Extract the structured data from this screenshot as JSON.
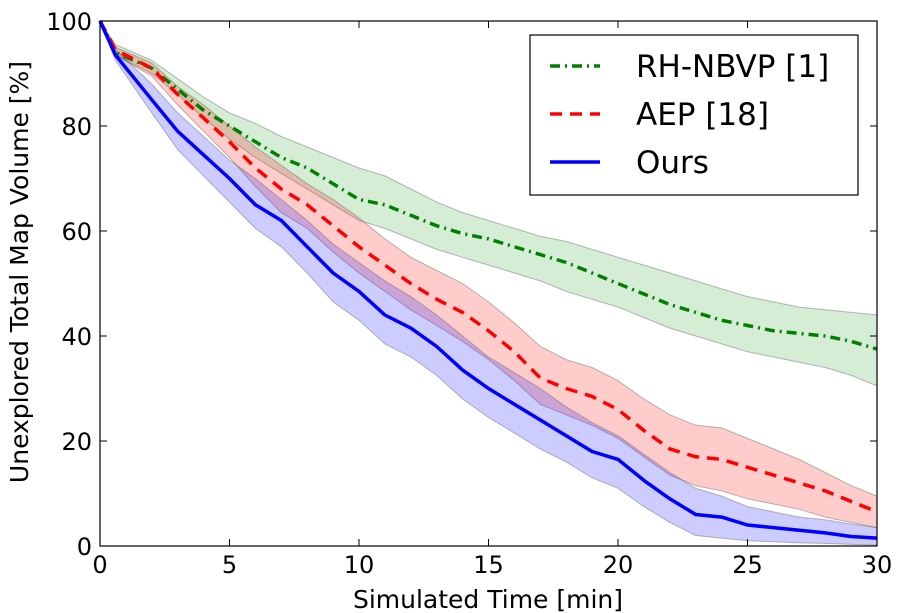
{
  "chart_data": {
    "type": "line",
    "title": "",
    "xlabel": "Simulated Time [min]",
    "ylabel": "Unexplored Total Map Volume [%]",
    "xlim": [
      0,
      30
    ],
    "ylim": [
      0,
      100
    ],
    "xticks": [
      0,
      5,
      10,
      15,
      20,
      25,
      30
    ],
    "yticks": [
      0,
      20,
      40,
      60,
      80,
      100
    ],
    "grid": false,
    "legend_position": "top-right",
    "series": [
      {
        "name": "RH-NBVP [1]",
        "color": "#008000",
        "fill_color": "#2ca02c",
        "line_style": "dash-dot",
        "x": [
          0,
          0.6,
          2,
          3,
          4,
          5,
          6,
          7,
          8,
          9,
          10,
          11,
          12,
          13,
          14,
          15,
          16,
          17,
          18,
          19,
          20,
          21,
          22,
          23,
          24,
          25,
          26,
          27,
          28,
          29,
          30
        ],
        "y": [
          100,
          94,
          91,
          87,
          83,
          80,
          77,
          74,
          72,
          69,
          66,
          65,
          63,
          61,
          59.5,
          58.5,
          57,
          55.5,
          54,
          52,
          50,
          48,
          46,
          44.5,
          43,
          42,
          41,
          40.5,
          40,
          39,
          37.5
        ],
        "upper": [
          100,
          95.5,
          92.5,
          89,
          85.5,
          82.5,
          80.5,
          78,
          76,
          74,
          72,
          70.5,
          68,
          65.5,
          63.5,
          62,
          60.5,
          59,
          58,
          56.5,
          55,
          53.5,
          52,
          50.5,
          49,
          47.5,
          46.5,
          45.5,
          45,
          44.5,
          44
        ],
        "lower": [
          100,
          93.5,
          90,
          86,
          81.5,
          77.5,
          74,
          71,
          68,
          65,
          62,
          60.5,
          58.5,
          56.5,
          55,
          53.5,
          52,
          50.5,
          48.5,
          47,
          45.5,
          43.5,
          41.5,
          40,
          38.5,
          37,
          36,
          35,
          34,
          32.5,
          30.5
        ]
      },
      {
        "name": "AEP [18]",
        "color": "#ff0000",
        "fill_color": "#ff0000",
        "line_style": "dashed",
        "x": [
          0,
          0.6,
          2,
          3,
          4,
          5,
          6,
          7,
          8,
          9,
          10,
          11,
          12,
          13,
          14,
          15,
          16,
          17,
          18,
          19,
          20,
          21,
          22,
          23,
          24,
          25,
          26,
          27,
          28,
          29,
          30
        ],
        "y": [
          100,
          94.5,
          91,
          86,
          81.5,
          77,
          72,
          68,
          65,
          61,
          57,
          53.5,
          50,
          47,
          44.5,
          41,
          37,
          32,
          30,
          28.5,
          26,
          22,
          18.5,
          17,
          16.5,
          15,
          13.5,
          12,
          10.5,
          8.5,
          6.5
        ],
        "upper": [
          100,
          95,
          92,
          87.5,
          84,
          80,
          76,
          72.5,
          69,
          66,
          62.5,
          58.5,
          55,
          52.5,
          50,
          46.5,
          42.5,
          38,
          35.5,
          34,
          31.5,
          28,
          25,
          23,
          22.5,
          20.5,
          18.5,
          16.5,
          14,
          11.5,
          9.5
        ],
        "lower": [
          100,
          93.5,
          89.5,
          84,
          79,
          74,
          68.5,
          63.5,
          60.5,
          56,
          52,
          48.5,
          45,
          42,
          39,
          35.5,
          31.5,
          27,
          25,
          23,
          20.5,
          17,
          13.5,
          11.5,
          10.5,
          9,
          8,
          7,
          5.5,
          4.5,
          3.5
        ]
      },
      {
        "name": "Ours",
        "color": "#0000ff",
        "fill_color": "#0000ff",
        "line_style": "solid",
        "x": [
          0,
          0.6,
          2,
          3,
          4,
          5,
          6,
          7,
          8,
          9,
          10,
          11,
          12,
          13,
          14,
          15,
          16,
          17,
          18,
          19,
          20,
          21,
          22,
          23,
          24,
          25,
          26,
          27,
          28,
          29,
          30
        ],
        "y": [
          100,
          93.5,
          85,
          79,
          74.5,
          70,
          65,
          62,
          57,
          52,
          48.5,
          44,
          41.5,
          38,
          33.5,
          30,
          27,
          24,
          21,
          18,
          16.5,
          12.5,
          9,
          6,
          5.5,
          4,
          3.5,
          3,
          2.5,
          1.8,
          1.5
        ],
        "upper": [
          100,
          94.5,
          88,
          82.5,
          78,
          73.5,
          70,
          66,
          62,
          57.5,
          54,
          50.5,
          47.5,
          44,
          40,
          36,
          33,
          30,
          26.5,
          23.5,
          21,
          17.5,
          14,
          11,
          9.5,
          7.5,
          6.5,
          5.5,
          5,
          4.2,
          3.5
        ],
        "lower": [
          100,
          92.5,
          82.5,
          75.5,
          70.5,
          65.5,
          60.5,
          57,
          52,
          46.5,
          43,
          38.5,
          36,
          32.5,
          28,
          24.5,
          21.5,
          18.5,
          16,
          13,
          11,
          7.5,
          4.5,
          2,
          1.5,
          1,
          0.8,
          0.6,
          0.5,
          0.3,
          0.2
        ]
      }
    ]
  }
}
